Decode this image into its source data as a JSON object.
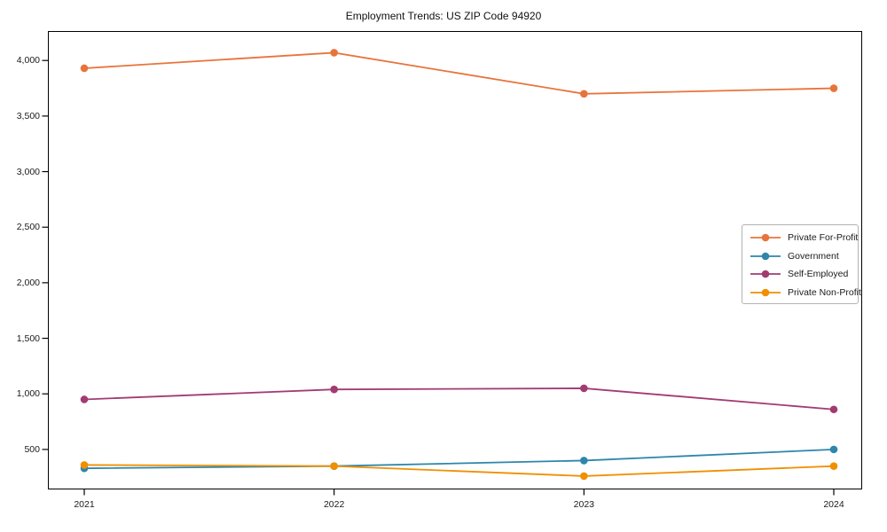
{
  "chart_data": {
    "type": "line",
    "title": "Employment Trends: US ZIP Code 94920",
    "x_categories": [
      "2021",
      "2022",
      "2023",
      "2024"
    ],
    "series": [
      {
        "name": "Private For-Profit",
        "color": "#E8743B",
        "values": [
          3930,
          4070,
          3700,
          3750
        ]
      },
      {
        "name": "Government",
        "color": "#2E86AB",
        "values": [
          330,
          350,
          400,
          500
        ]
      },
      {
        "name": "Self-Employed",
        "color": "#A23B72",
        "values": [
          950,
          1040,
          1050,
          860
        ]
      },
      {
        "name": "Private Non-Profit",
        "color": "#F18F01",
        "values": [
          360,
          350,
          260,
          350
        ]
      }
    ],
    "yticks": [
      {
        "value": 500,
        "label": "500"
      },
      {
        "value": 1000,
        "label": "1,000"
      },
      {
        "value": 1500,
        "label": "1,500"
      },
      {
        "value": 2000,
        "label": "2,000"
      },
      {
        "value": 2500,
        "label": "2,500"
      },
      {
        "value": 3000,
        "label": "3,000"
      },
      {
        "value": 3500,
        "label": "3,500"
      },
      {
        "value": 4000,
        "label": "4,000"
      }
    ],
    "ylim": [
      140,
      4265
    ],
    "xlabel": "",
    "ylabel": "",
    "grid": false,
    "legend_position": "center-right",
    "marker": "circle",
    "axis_color": "#000000",
    "text_color": "#1a1a1a",
    "background_color": "#ffffff"
  }
}
